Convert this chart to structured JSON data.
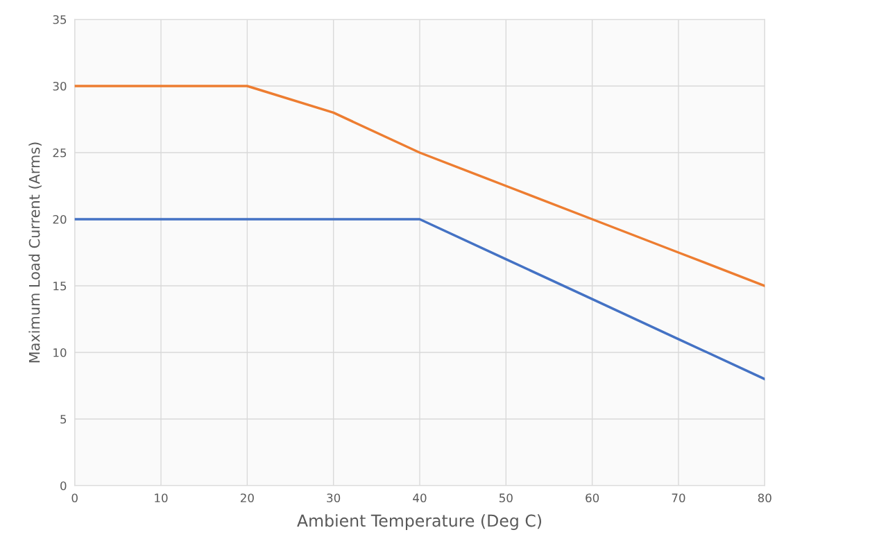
{
  "chart_data": {
    "type": "line",
    "xlabel": "Ambient Temperature (Deg C)",
    "ylabel": "Maximum Load Current (Arms)",
    "x": [
      0,
      10,
      20,
      30,
      40,
      50,
      60,
      70,
      80
    ],
    "series": [
      {
        "color": "#ed7d31",
        "values": [
          30,
          30,
          30,
          28,
          25,
          22.5,
          20,
          17.5,
          15
        ]
      },
      {
        "color": "#4472c4",
        "values": [
          20,
          20,
          20,
          20,
          20,
          17,
          14,
          11,
          8
        ]
      }
    ],
    "xlim": [
      0,
      80
    ],
    "xticks": [
      0,
      10,
      20,
      30,
      40,
      50,
      60,
      70,
      80
    ],
    "ylim": [
      0,
      35
    ],
    "yticks": [
      0,
      5,
      10,
      15,
      20,
      25,
      30,
      35
    ],
    "grid": true,
    "marker": "none",
    "line_style": "solid"
  }
}
